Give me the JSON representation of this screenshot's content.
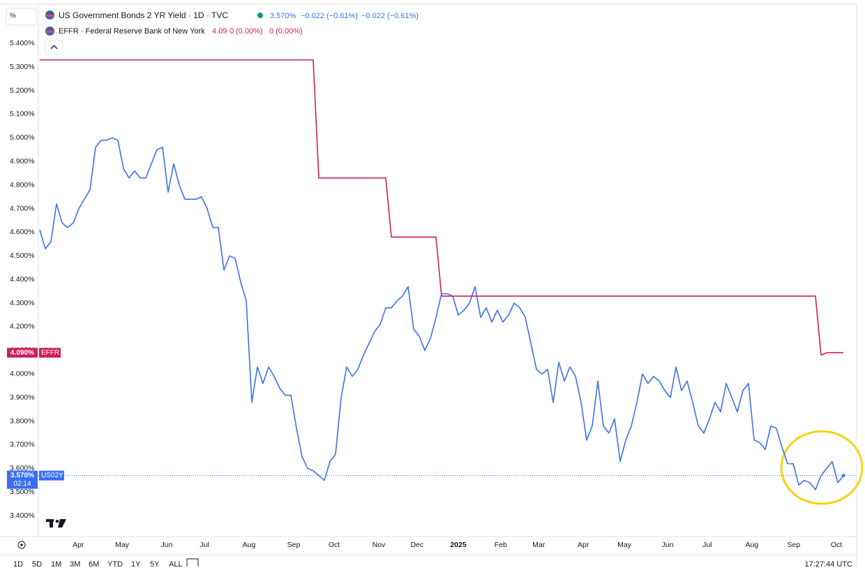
{
  "chart_data": {
    "type": "line",
    "axis_unit": "%",
    "series": [
      {
        "name": "US Government Bonds 2 YR Yield · 1D · TVC",
        "color": "#3a6ff0",
        "legend_values": [
          "3.570%",
          "−0.022 (−0.61%)",
          "−0.022 (−0.61%)"
        ],
        "price_label": {
          "value": 3.57,
          "label": "3.570%"
        },
        "ticker": "US02Y",
        "countdown": "02:14",
        "values": [
          4.61,
          4.53,
          4.56,
          4.72,
          4.64,
          4.62,
          4.64,
          4.7,
          4.74,
          4.78,
          4.96,
          4.99,
          4.99,
          5.0,
          4.99,
          4.87,
          4.83,
          4.86,
          4.83,
          4.83,
          4.89,
          4.95,
          4.96,
          4.77,
          4.89,
          4.8,
          4.74,
          4.74,
          4.74,
          4.75,
          4.7,
          4.62,
          4.62,
          4.44,
          4.5,
          4.49,
          4.39,
          4.31,
          3.88,
          4.03,
          3.96,
          4.03,
          3.99,
          3.94,
          3.91,
          3.91,
          3.77,
          3.65,
          3.6,
          3.59,
          3.57,
          3.55,
          3.63,
          3.66,
          3.9,
          4.03,
          3.99,
          4.02,
          4.08,
          4.13,
          4.18,
          4.21,
          4.28,
          4.28,
          4.31,
          4.33,
          4.37,
          4.19,
          4.16,
          4.1,
          4.15,
          4.24,
          4.34,
          4.34,
          4.33,
          4.25,
          4.27,
          4.3,
          4.37,
          4.24,
          4.28,
          4.22,
          4.27,
          4.22,
          4.25,
          4.3,
          4.28,
          4.24,
          4.13,
          4.02,
          4.0,
          4.02,
          3.88,
          4.05,
          3.97,
          4.03,
          3.99,
          3.88,
          3.72,
          3.78,
          3.97,
          3.78,
          3.75,
          3.81,
          3.63,
          3.72,
          3.78,
          3.88,
          4.0,
          3.96,
          3.99,
          3.97,
          3.93,
          3.9,
          4.03,
          3.93,
          3.97,
          3.88,
          3.78,
          3.75,
          3.81,
          3.88,
          3.84,
          3.96,
          3.9,
          3.84,
          3.93,
          3.96,
          3.72,
          3.71,
          3.68,
          3.78,
          3.77,
          3.69,
          3.62,
          3.62,
          3.53,
          3.55,
          3.54,
          3.51,
          3.57,
          3.6,
          3.63,
          3.54,
          3.57
        ]
      },
      {
        "name": "EFFR · Federal Reserve Bank of New York",
        "color": "#cc1f5e",
        "legend_values": [
          "4.09",
          "0",
          "(0.00%)",
          "0 (0.00%)"
        ],
        "price_label": {
          "value": 4.09,
          "label": "4.090%"
        },
        "ticker": "EFFR",
        "values": [
          5.33,
          5.33,
          5.33,
          5.33,
          5.33,
          5.33,
          5.33,
          5.33,
          5.33,
          5.33,
          5.33,
          5.33,
          5.33,
          5.33,
          5.33,
          5.33,
          5.33,
          5.33,
          5.33,
          5.33,
          5.33,
          5.33,
          5.33,
          5.33,
          5.33,
          5.33,
          5.33,
          5.33,
          5.33,
          5.33,
          5.33,
          5.33,
          5.33,
          5.33,
          5.33,
          5.33,
          5.33,
          5.33,
          5.33,
          5.33,
          5.33,
          5.33,
          5.33,
          5.33,
          5.33,
          5.33,
          5.33,
          5.33,
          5.33,
          5.33,
          4.83,
          4.83,
          4.83,
          4.83,
          4.83,
          4.83,
          4.83,
          4.83,
          4.83,
          4.83,
          4.83,
          4.83,
          4.83,
          4.58,
          4.58,
          4.58,
          4.58,
          4.58,
          4.58,
          4.58,
          4.58,
          4.58,
          4.33,
          4.33,
          4.33,
          4.33,
          4.33,
          4.33,
          4.33,
          4.33,
          4.33,
          4.33,
          4.33,
          4.33,
          4.33,
          4.33,
          4.33,
          4.33,
          4.33,
          4.33,
          4.33,
          4.33,
          4.33,
          4.33,
          4.33,
          4.33,
          4.33,
          4.33,
          4.33,
          4.33,
          4.33,
          4.33,
          4.33,
          4.33,
          4.33,
          4.33,
          4.33,
          4.33,
          4.33,
          4.33,
          4.33,
          4.33,
          4.33,
          4.33,
          4.33,
          4.33,
          4.33,
          4.33,
          4.33,
          4.33,
          4.33,
          4.33,
          4.33,
          4.33,
          4.33,
          4.33,
          4.33,
          4.33,
          4.33,
          4.33,
          4.33,
          4.33,
          4.33,
          4.33,
          4.33,
          4.33,
          4.33,
          4.33,
          4.33,
          4.33,
          4.08,
          4.09,
          4.09,
          4.09,
          4.09
        ]
      }
    ],
    "xlim": [
      0,
      146
    ],
    "xticks": [
      {
        "value": 6.9,
        "label": "Apr"
      },
      {
        "value": 14.75,
        "label": "May"
      },
      {
        "value": 22.75,
        "label": "Jun"
      },
      {
        "value": 29.5,
        "label": "Jul"
      },
      {
        "value": 37.5,
        "label": "Aug"
      },
      {
        "value": 45.5,
        "label": "Sep"
      },
      {
        "value": 52.75,
        "label": "Oct"
      },
      {
        "value": 60.75,
        "label": "Nov"
      },
      {
        "value": 67.6,
        "label": "Dec"
      },
      {
        "value": 75,
        "label": "2025"
      },
      {
        "value": 82.6,
        "label": "Feb"
      },
      {
        "value": 89.4,
        "label": "Mar"
      },
      {
        "value": 97.4,
        "label": "Apr"
      },
      {
        "value": 104.75,
        "label": "May"
      },
      {
        "value": 112.5,
        "label": "Jun"
      },
      {
        "value": 119.6,
        "label": "Jul"
      },
      {
        "value": 127.6,
        "label": "Aug"
      },
      {
        "value": 135.1,
        "label": "Sep"
      },
      {
        "value": 142.75,
        "label": "Oct"
      }
    ],
    "ylim": [
      3.3,
      5.56
    ],
    "yticks": [
      {
        "value": 3.4,
        "label": "3.400%"
      },
      {
        "value": 3.5,
        "label": "3.500%"
      },
      {
        "value": 3.6,
        "label": "3.600%"
      },
      {
        "value": 3.7,
        "label": "3.700%"
      },
      {
        "value": 3.8,
        "label": "3.800%"
      },
      {
        "value": 3.9,
        "label": "3.900%"
      },
      {
        "value": 4.0,
        "label": "4.000%"
      },
      {
        "value": 4.1,
        "label": "4.100%"
      },
      {
        "value": 4.2,
        "label": "4.200%"
      },
      {
        "value": 4.3,
        "label": "4.300%"
      },
      {
        "value": 4.4,
        "label": "4.400%"
      },
      {
        "value": 4.5,
        "label": "4.500%"
      },
      {
        "value": 4.6,
        "label": "4.600%"
      },
      {
        "value": 4.7,
        "label": "4.700%"
      },
      {
        "value": 4.8,
        "label": "4.800%"
      },
      {
        "value": 4.9,
        "label": "4.900%"
      },
      {
        "value": 5.0,
        "label": "5.000%"
      },
      {
        "value": 5.1,
        "label": "5.100%"
      },
      {
        "value": 5.2,
        "label": "5.200%"
      },
      {
        "value": 5.3,
        "label": "5.300%"
      },
      {
        "value": 5.4,
        "label": "5.400%"
      }
    ],
    "grid": false,
    "last_price_line": true,
    "range_buttons": [
      "1D",
      "5D",
      "1M",
      "3M",
      "6M",
      "YTD",
      "1Y",
      "5Y",
      "ALL"
    ],
    "clock": "17:27:44 UTC"
  }
}
